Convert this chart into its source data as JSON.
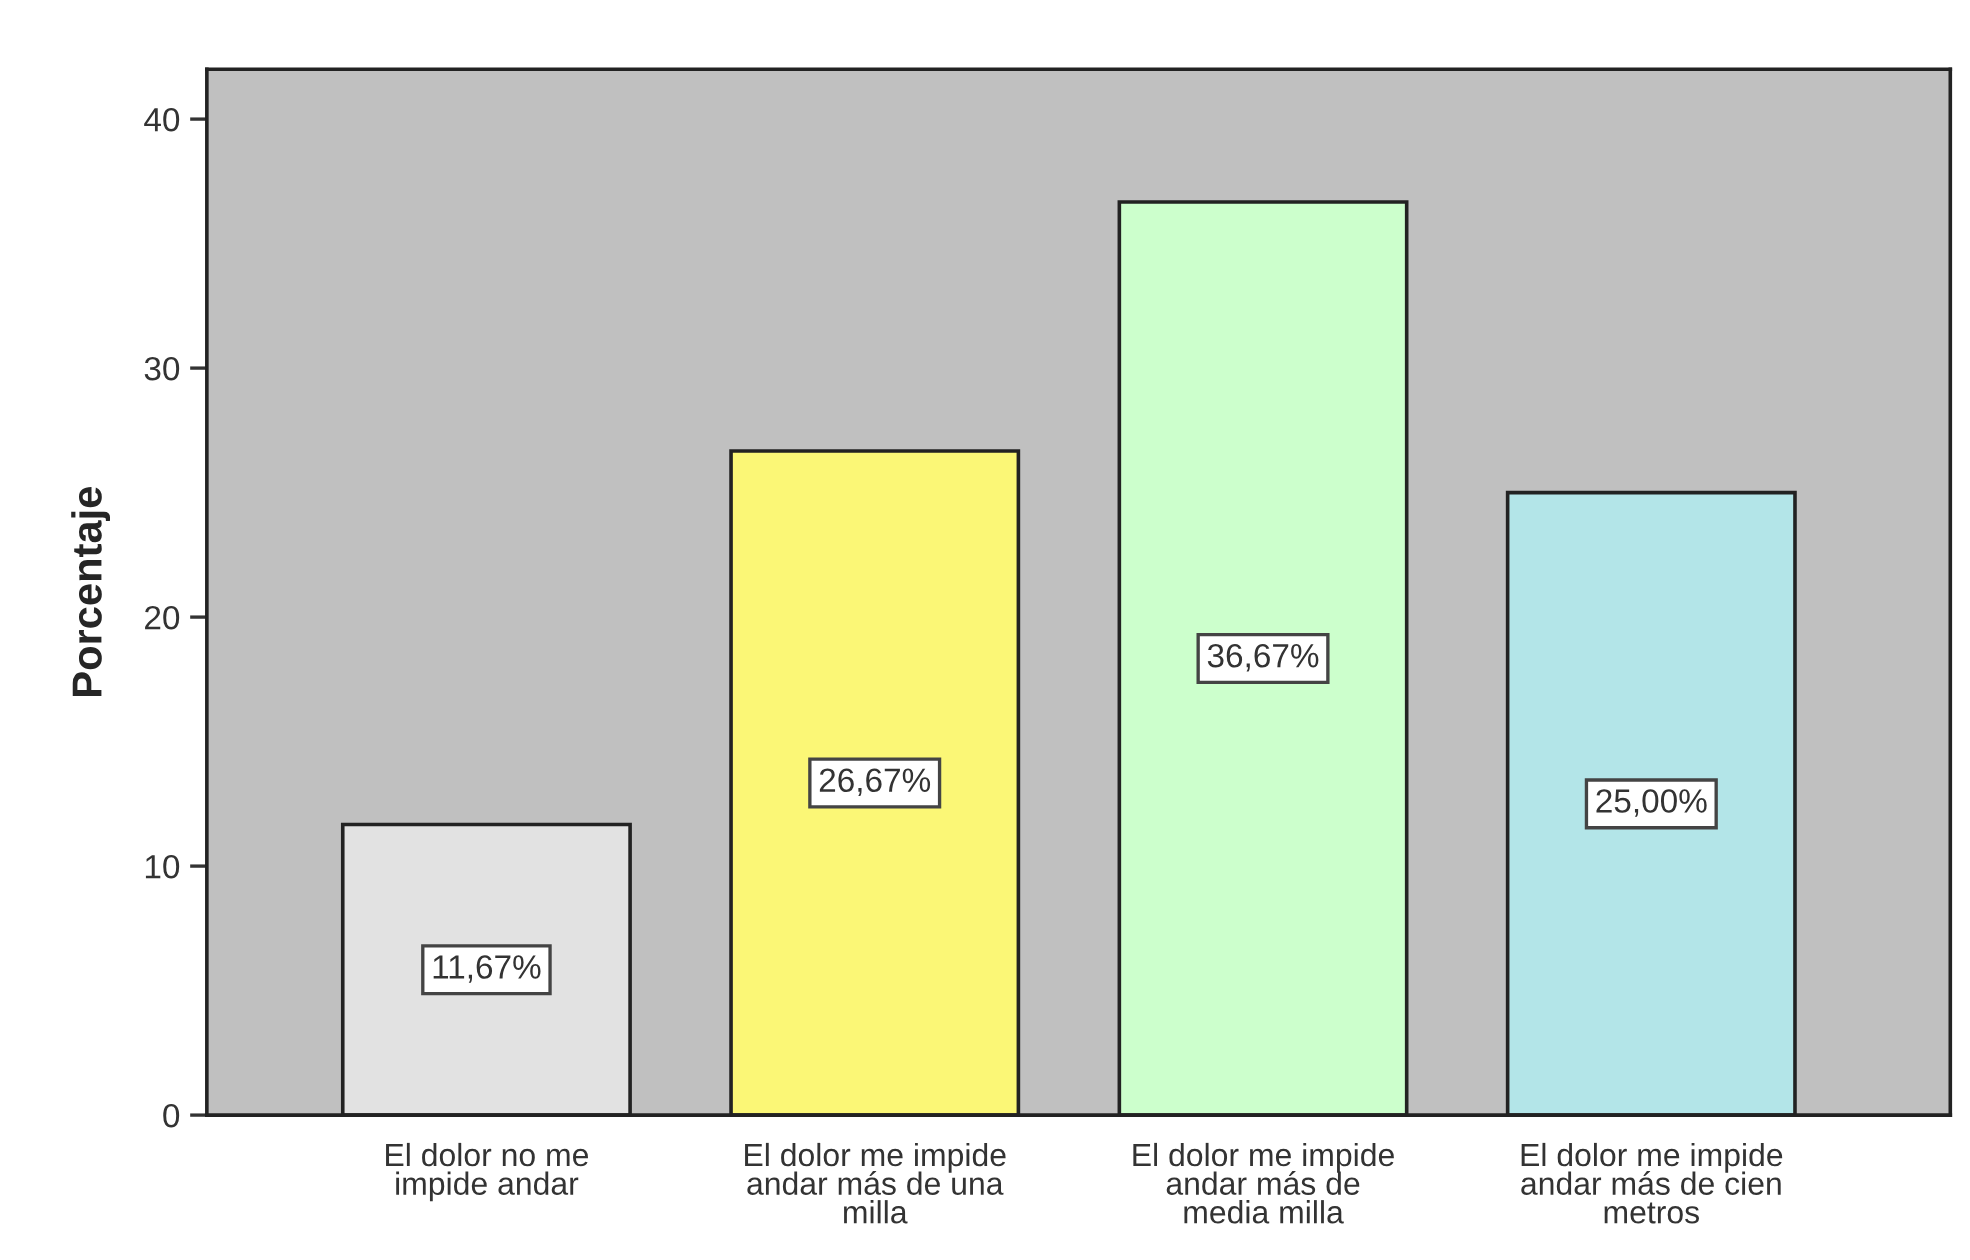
{
  "chart_data": {
    "type": "bar",
    "ylabel": "Porcentaje",
    "categories": [
      "El dolor no me\nimpide andar",
      "El dolor me impide\nandar más de una\nmilla",
      "El dolor me impide\nandar más de\nmedia milla",
      "El dolor me impide\nandar más de cien\nmetros"
    ],
    "values": [
      11.67,
      26.67,
      36.67,
      25.0
    ],
    "colors": [
      "#e2e2e2",
      "#fbf776",
      "#ccffcc",
      "#b3e5e8"
    ],
    "value_labels": [
      "11,67%",
      "26,67%",
      "36,67%",
      "25,00%"
    ],
    "ylim": [
      0,
      42
    ],
    "yticks": [
      0,
      10,
      20,
      30,
      40
    ],
    "grid": false,
    "legend": false
  }
}
